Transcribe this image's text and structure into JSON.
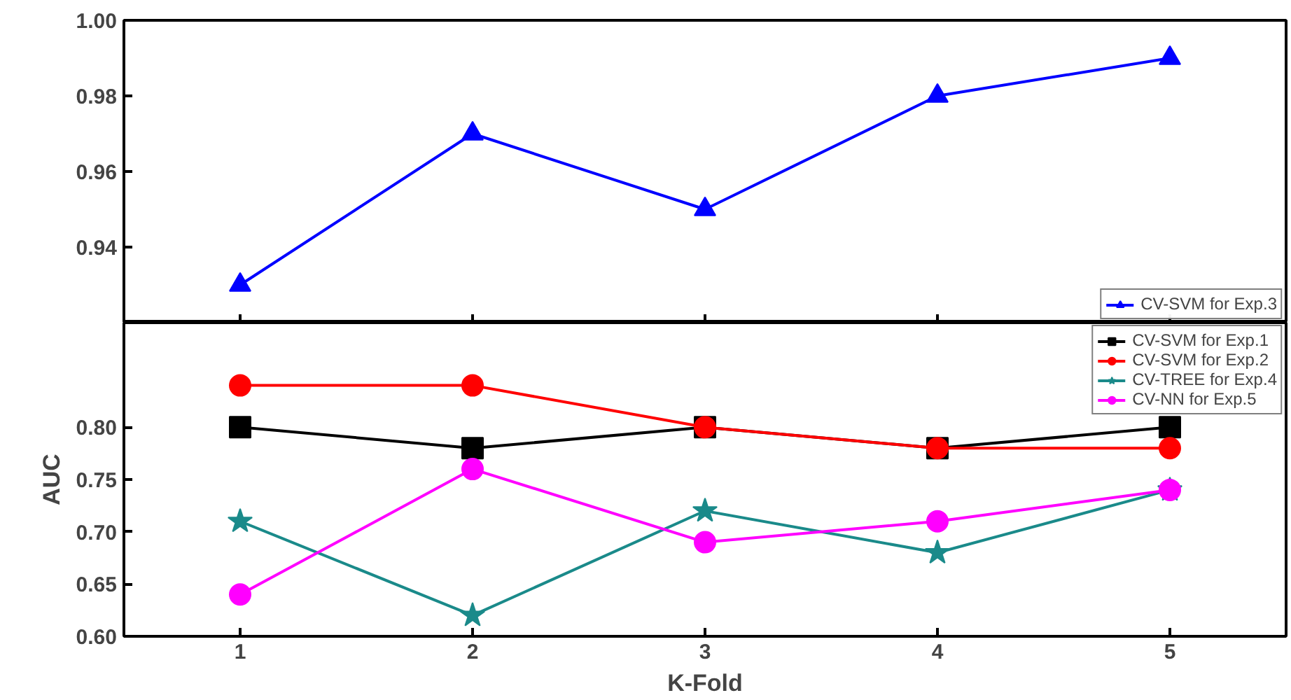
{
  "chart_data": [
    {
      "type": "line",
      "ylabel": null,
      "x": [
        1,
        2,
        3,
        4,
        5
      ],
      "xlim": [
        0.5,
        5.5
      ],
      "xticks": [
        1,
        2,
        3,
        4,
        5
      ],
      "ylim": [
        0.92,
        1.0
      ],
      "yticks": [
        {
          "value": 0.94,
          "label": "0.94"
        },
        {
          "value": 0.96,
          "label": "0.96"
        },
        {
          "value": 0.98,
          "label": "0.98"
        },
        {
          "value": 1.0,
          "label": "1.00"
        }
      ],
      "tick_labels": "y",
      "grid": false,
      "legend": "bottom right",
      "series": [
        {
          "name": "CV-SVM for Exp.3",
          "color": "#0000ff",
          "marker": "triangle",
          "values": [
            0.93,
            0.97,
            0.95,
            0.98,
            0.99
          ]
        }
      ]
    },
    {
      "type": "line",
      "xlabel": "K-Fold",
      "ylabel": "AUC",
      "x": [
        1,
        2,
        3,
        4,
        5
      ],
      "xlim": [
        0.5,
        5.5
      ],
      "xticks": [
        1,
        2,
        3,
        4,
        5
      ],
      "ylim": [
        0.6,
        0.9
      ],
      "yticks": [
        {
          "value": 0.6,
          "label": "0.60"
        },
        {
          "value": 0.65,
          "label": "0.65"
        },
        {
          "value": 0.7,
          "label": "0.70"
        },
        {
          "value": 0.75,
          "label": "0.75"
        },
        {
          "value": 0.8,
          "label": "0.80"
        }
      ],
      "grid": false,
      "legend": "top right",
      "series": [
        {
          "name": "CV-SVM for Exp.1",
          "color": "#000000",
          "marker": "square",
          "values": [
            0.8,
            0.78,
            0.8,
            0.78,
            0.8
          ]
        },
        {
          "name": "CV-SVM for Exp.2",
          "color": "#ff0000",
          "marker": "circle",
          "values": [
            0.84,
            0.84,
            0.8,
            0.78,
            0.78
          ]
        },
        {
          "name": "CV-TREE for Exp.4",
          "color": "#1a8a8a",
          "marker": "star",
          "values": [
            0.71,
            0.62,
            0.72,
            0.68,
            0.74
          ]
        },
        {
          "name": "CV-NN for Exp.5",
          "color": "#ff00ff",
          "marker": "circle",
          "values": [
            0.64,
            0.76,
            0.69,
            0.71,
            0.74
          ]
        }
      ]
    }
  ]
}
